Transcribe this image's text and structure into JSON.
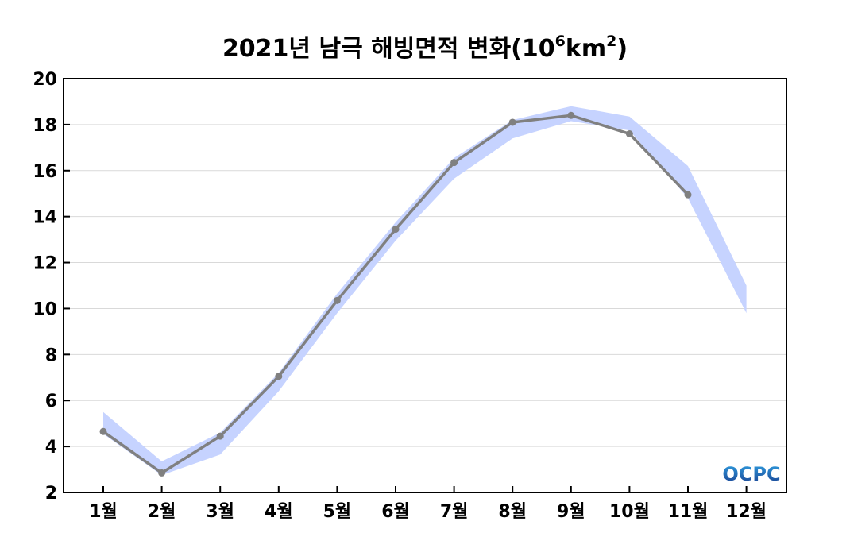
{
  "chart_data": {
    "type": "line",
    "title": {
      "main": "2021년 남극 해빙면적 변화(10",
      "exp1": "6",
      "mid": "km",
      "exp2": "2",
      "tail": ")"
    },
    "categories": [
      "1월",
      "2월",
      "3월",
      "4월",
      "5월",
      "6월",
      "7월",
      "8월",
      "9월",
      "10월",
      "11월",
      "12월"
    ],
    "ylim": [
      2,
      20
    ],
    "yticks": [
      2,
      4,
      6,
      8,
      10,
      12,
      14,
      16,
      18,
      20
    ],
    "grid": true,
    "legend": "none",
    "series": [
      {
        "kind": "line",
        "color": "#808080",
        "values": [
          4.65,
          2.85,
          4.45,
          7.05,
          10.35,
          13.45,
          16.35,
          18.1,
          18.4,
          17.6,
          14.95,
          null
        ]
      }
    ],
    "band": {
      "color": "#c6d3ff",
      "upper": [
        5.5,
        3.35,
        4.6,
        7.2,
        10.65,
        13.75,
        16.55,
        18.2,
        18.8,
        18.35,
        16.2,
        11.0
      ],
      "lower": [
        4.55,
        2.75,
        3.65,
        6.4,
        9.8,
        12.95,
        15.65,
        17.4,
        18.15,
        17.75,
        14.8,
        9.8
      ]
    }
  },
  "logo": {
    "text": "OCPC",
    "colors": [
      "#1a3f8f",
      "#2f9ee0"
    ]
  }
}
